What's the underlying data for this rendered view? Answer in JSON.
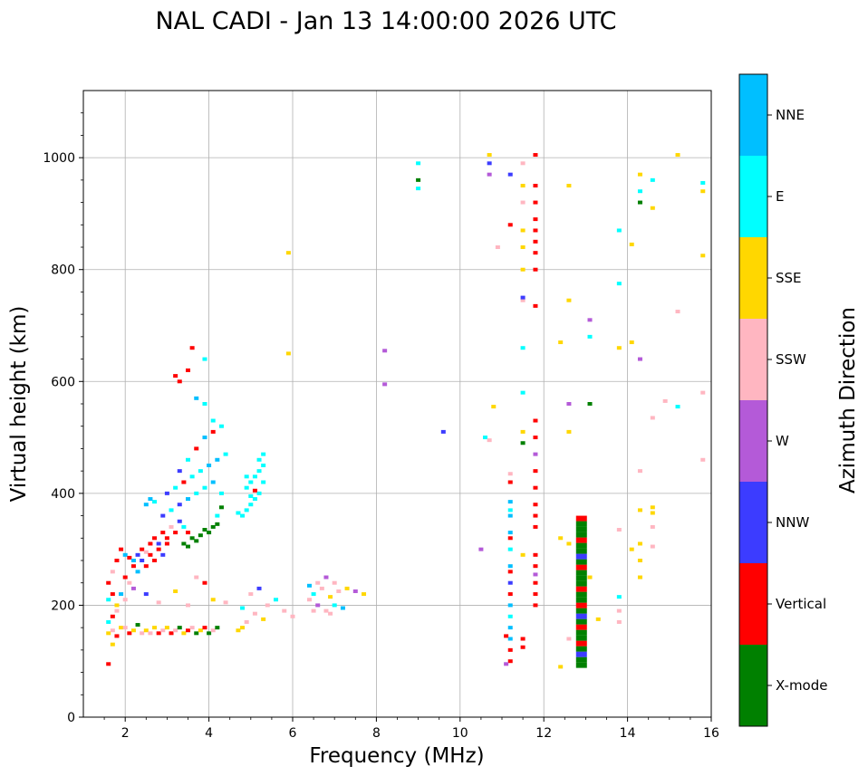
{
  "chart_data": {
    "type": "scatter",
    "title": "NAL CADI - Jan 13 14:00:00 2026 UTC",
    "xlabel": "Frequency (MHz)",
    "ylabel": "Virtual height (km)",
    "xlim": [
      1,
      16
    ],
    "ylim": [
      0,
      1120
    ],
    "xticks": [
      2,
      4,
      6,
      8,
      10,
      12,
      14,
      16
    ],
    "yticks": [
      0,
      200,
      400,
      600,
      800,
      1000
    ],
    "grid": true,
    "colorbar": {
      "label": "Azimuth Direction",
      "categories": [
        {
          "name": "X-mode",
          "color": "#008000"
        },
        {
          "name": "Vertical",
          "color": "#ff0000"
        },
        {
          "name": "NNW",
          "color": "#3c3cff"
        },
        {
          "name": "W",
          "color": "#b45ad8"
        },
        {
          "name": "SSW",
          "color": "#ffb6c1"
        },
        {
          "name": "SSE",
          "color": "#ffd700"
        },
        {
          "name": "E",
          "color": "#00ffff"
        },
        {
          "name": "NNE",
          "color": "#00bfff"
        }
      ]
    },
    "points": [
      [
        1.6,
        150,
        "SSE"
      ],
      [
        1.7,
        155,
        "SSW"
      ],
      [
        1.8,
        145,
        "Vertical"
      ],
      [
        1.9,
        160,
        "SSE"
      ],
      [
        1.6,
        170,
        "E"
      ],
      [
        1.7,
        180,
        "Vertical"
      ],
      [
        1.8,
        200,
        "SSE"
      ],
      [
        1.6,
        210,
        "E"
      ],
      [
        1.9,
        220,
        "NNE"
      ],
      [
        2.0,
        160,
        "SSW"
      ],
      [
        2.1,
        150,
        "Vertical"
      ],
      [
        2.2,
        155,
        "SSE"
      ],
      [
        2.3,
        165,
        "X-mode"
      ],
      [
        2.4,
        150,
        "SSW"
      ],
      [
        2.5,
        155,
        "SSE"
      ],
      [
        2.6,
        150,
        "SSW"
      ],
      [
        2.7,
        160,
        "SSE"
      ],
      [
        2.8,
        150,
        "Vertical"
      ],
      [
        2.9,
        155,
        "SSW"
      ],
      [
        3.0,
        160,
        "SSE"
      ],
      [
        3.1,
        150,
        "Vertical"
      ],
      [
        3.2,
        155,
        "SSW"
      ],
      [
        3.3,
        160,
        "X-mode"
      ],
      [
        3.4,
        150,
        "SSE"
      ],
      [
        3.5,
        155,
        "Vertical"
      ],
      [
        3.6,
        160,
        "SSW"
      ],
      [
        3.7,
        150,
        "X-mode"
      ],
      [
        3.8,
        155,
        "SSE"
      ],
      [
        3.9,
        160,
        "Vertical"
      ],
      [
        4.0,
        150,
        "X-mode"
      ],
      [
        4.1,
        155,
        "SSW"
      ],
      [
        4.2,
        160,
        "X-mode"
      ],
      [
        4.7,
        155,
        "SSE"
      ],
      [
        4.8,
        160,
        "SSE"
      ],
      [
        1.6,
        95,
        "Vertical"
      ],
      [
        1.7,
        130,
        "SSE"
      ],
      [
        1.8,
        190,
        "SSW"
      ],
      [
        2.0,
        210,
        "SSW"
      ],
      [
        2.2,
        230,
        "W"
      ],
      [
        2.5,
        220,
        "NNW"
      ],
      [
        2.8,
        205,
        "SSW"
      ],
      [
        3.2,
        225,
        "SSE"
      ],
      [
        3.5,
        200,
        "SSW"
      ],
      [
        3.7,
        250,
        "SSW"
      ],
      [
        3.9,
        240,
        "Vertical"
      ],
      [
        4.1,
        210,
        "SSE"
      ],
      [
        4.4,
        205,
        "SSW"
      ],
      [
        4.8,
        195,
        "E"
      ],
      [
        5.0,
        220,
        "SSW"
      ],
      [
        5.2,
        230,
        "NNW"
      ],
      [
        5.4,
        200,
        "SSW"
      ],
      [
        5.6,
        210,
        "E"
      ],
      [
        5.8,
        190,
        "SSW"
      ],
      [
        6.0,
        180,
        "SSW"
      ],
      [
        4.9,
        170,
        "SSW"
      ],
      [
        5.1,
        185,
        "SSW"
      ],
      [
        5.3,
        175,
        "SSE"
      ],
      [
        6.4,
        210,
        "SSW"
      ],
      [
        6.5,
        220,
        "E"
      ],
      [
        6.6,
        200,
        "W"
      ],
      [
        6.7,
        230,
        "SSW"
      ],
      [
        6.8,
        190,
        "SSW"
      ],
      [
        6.9,
        215,
        "SSE"
      ],
      [
        7.0,
        200,
        "E"
      ],
      [
        7.1,
        225,
        "SSW"
      ],
      [
        7.2,
        195,
        "NNE"
      ],
      [
        6.6,
        240,
        "SSW"
      ],
      [
        6.8,
        250,
        "W"
      ],
      [
        7.0,
        240,
        "SSW"
      ],
      [
        6.5,
        190,
        "SSW"
      ],
      [
        7.3,
        230,
        "SSE"
      ],
      [
        7.5,
        225,
        "W"
      ],
      [
        7.7,
        220,
        "SSE"
      ],
      [
        6.4,
        235,
        "NNE"
      ],
      [
        6.9,
        185,
        "SSW"
      ],
      [
        1.7,
        260,
        "SSW"
      ],
      [
        1.8,
        280,
        "Vertical"
      ],
      [
        1.9,
        300,
        "Vertical"
      ],
      [
        2.0,
        290,
        "NNE"
      ],
      [
        2.1,
        285,
        "Vertical"
      ],
      [
        2.2,
        280,
        "NNE"
      ],
      [
        2.3,
        290,
        "NNW"
      ],
      [
        2.4,
        300,
        "Vertical"
      ],
      [
        2.5,
        295,
        "SSW"
      ],
      [
        2.6,
        310,
        "Vertical"
      ],
      [
        2.7,
        320,
        "Vertical"
      ],
      [
        2.8,
        310,
        "NNW"
      ],
      [
        2.9,
        330,
        "Vertical"
      ],
      [
        3.0,
        320,
        "Vertical"
      ],
      [
        3.1,
        340,
        "SSW"
      ],
      [
        3.2,
        330,
        "Vertical"
      ],
      [
        3.3,
        350,
        "NNW"
      ],
      [
        3.4,
        340,
        "E"
      ],
      [
        3.5,
        330,
        "Vertical"
      ],
      [
        2.0,
        250,
        "Vertical"
      ],
      [
        2.2,
        270,
        "Vertical"
      ],
      [
        2.4,
        280,
        "NNW"
      ],
      [
        2.6,
        290,
        "Vertical"
      ],
      [
        2.8,
        300,
        "Vertical"
      ],
      [
        3.0,
        310,
        "Vertical"
      ],
      [
        1.6,
        240,
        "Vertical"
      ],
      [
        1.7,
        220,
        "Vertical"
      ],
      [
        2.1,
        240,
        "SSW"
      ],
      [
        2.3,
        260,
        "NNE"
      ],
      [
        2.5,
        270,
        "Vertical"
      ],
      [
        2.7,
        280,
        "Vertical"
      ],
      [
        2.9,
        290,
        "NNW"
      ],
      [
        3.4,
        310,
        "X-mode"
      ],
      [
        3.6,
        320,
        "X-mode"
      ],
      [
        3.8,
        325,
        "X-mode"
      ],
      [
        4.0,
        330,
        "X-mode"
      ],
      [
        4.1,
        340,
        "X-mode"
      ],
      [
        4.2,
        345,
        "X-mode"
      ],
      [
        3.5,
        305,
        "X-mode"
      ],
      [
        3.7,
        315,
        "X-mode"
      ],
      [
        3.9,
        335,
        "X-mode"
      ],
      [
        4.2,
        360,
        "E"
      ],
      [
        4.3,
        375,
        "X-mode"
      ],
      [
        2.5,
        380,
        "NNE"
      ],
      [
        2.7,
        385,
        "E"
      ],
      [
        2.9,
        360,
        "NNW"
      ],
      [
        3.1,
        370,
        "E"
      ],
      [
        3.3,
        380,
        "NNW"
      ],
      [
        3.5,
        390,
        "NNE"
      ],
      [
        3.7,
        400,
        "E"
      ],
      [
        3.9,
        410,
        "E"
      ],
      [
        4.1,
        420,
        "NNE"
      ],
      [
        4.3,
        400,
        "E"
      ],
      [
        2.6,
        390,
        "NNE"
      ],
      [
        3.0,
        400,
        "NNW"
      ],
      [
        3.2,
        410,
        "E"
      ],
      [
        3.4,
        420,
        "Vertical"
      ],
      [
        3.6,
        430,
        "E"
      ],
      [
        3.8,
        440,
        "E"
      ],
      [
        4.0,
        450,
        "NNE"
      ],
      [
        4.2,
        460,
        "NNE"
      ],
      [
        4.4,
        470,
        "E"
      ],
      [
        3.3,
        440,
        "NNW"
      ],
      [
        3.5,
        460,
        "E"
      ],
      [
        3.7,
        480,
        "Vertical"
      ],
      [
        3.9,
        500,
        "NNE"
      ],
      [
        4.1,
        510,
        "Vertical"
      ],
      [
        4.8,
        360,
        "E"
      ],
      [
        4.9,
        370,
        "E"
      ],
      [
        5.0,
        380,
        "E"
      ],
      [
        5.1,
        390,
        "E"
      ],
      [
        5.2,
        400,
        "E"
      ],
      [
        4.9,
        410,
        "E"
      ],
      [
        5.0,
        420,
        "E"
      ],
      [
        5.1,
        430,
        "E"
      ],
      [
        5.2,
        440,
        "E"
      ],
      [
        5.3,
        450,
        "E"
      ],
      [
        5.2,
        460,
        "E"
      ],
      [
        5.3,
        470,
        "E"
      ],
      [
        4.7,
        365,
        "E"
      ],
      [
        5.0,
        395,
        "E"
      ],
      [
        5.3,
        420,
        "E"
      ],
      [
        4.9,
        430,
        "E"
      ],
      [
        5.1,
        405,
        "Vertical"
      ],
      [
        3.3,
        600,
        "Vertical"
      ],
      [
        3.5,
        620,
        "Vertical"
      ],
      [
        3.6,
        660,
        "Vertical"
      ],
      [
        3.9,
        640,
        "E"
      ],
      [
        3.7,
        570,
        "NNE"
      ],
      [
        3.9,
        560,
        "E"
      ],
      [
        4.1,
        530,
        "E"
      ],
      [
        4.3,
        520,
        "E"
      ],
      [
        3.2,
        610,
        "Vertical"
      ],
      [
        5.9,
        830,
        "SSE"
      ],
      [
        5.9,
        650,
        "SSE"
      ],
      [
        8.2,
        655,
        "W"
      ],
      [
        8.2,
        595,
        "W"
      ],
      [
        9.0,
        990,
        "E"
      ],
      [
        9.0,
        960,
        "X-mode"
      ],
      [
        9.0,
        945,
        "E"
      ],
      [
        9.6,
        510,
        "NNW"
      ],
      [
        10.5,
        300,
        "W"
      ],
      [
        10.6,
        500,
        "E"
      ],
      [
        10.7,
        1005,
        "SSE"
      ],
      [
        10.7,
        990,
        "NNW"
      ],
      [
        10.7,
        970,
        "W"
      ],
      [
        10.8,
        555,
        "SSE"
      ],
      [
        10.9,
        840,
        "SSW"
      ],
      [
        10.7,
        495,
        "SSW"
      ],
      [
        11.2,
        100,
        "Vertical"
      ],
      [
        11.2,
        120,
        "Vertical"
      ],
      [
        11.2,
        140,
        "NNE"
      ],
      [
        11.2,
        160,
        "NNE"
      ],
      [
        11.2,
        180,
        "E"
      ],
      [
        11.2,
        200,
        "NNE"
      ],
      [
        11.2,
        220,
        "Vertical"
      ],
      [
        11.2,
        240,
        "NNW"
      ],
      [
        11.2,
        260,
        "Vertical"
      ],
      [
        11.2,
        270,
        "NNE"
      ],
      [
        11.2,
        300,
        "E"
      ],
      [
        11.2,
        320,
        "Vertical"
      ],
      [
        11.2,
        330,
        "NNE"
      ],
      [
        11.2,
        360,
        "NNE"
      ],
      [
        11.2,
        370,
        "E"
      ],
      [
        11.2,
        385,
        "NNE"
      ],
      [
        11.2,
        420,
        "Vertical"
      ],
      [
        11.2,
        435,
        "SSW"
      ],
      [
        11.2,
        880,
        "Vertical"
      ],
      [
        11.2,
        970,
        "NNW"
      ],
      [
        11.1,
        145,
        "Vertical"
      ],
      [
        11.1,
        95,
        "W"
      ],
      [
        11.5,
        140,
        "Vertical"
      ],
      [
        11.5,
        290,
        "SSE"
      ],
      [
        11.5,
        490,
        "X-mode"
      ],
      [
        11.5,
        510,
        "SSE"
      ],
      [
        11.5,
        580,
        "E"
      ],
      [
        11.5,
        660,
        "E"
      ],
      [
        11.5,
        745,
        "SSW"
      ],
      [
        11.5,
        750,
        "NNW"
      ],
      [
        11.5,
        800,
        "SSE"
      ],
      [
        11.5,
        840,
        "SSE"
      ],
      [
        11.5,
        870,
        "SSE"
      ],
      [
        11.5,
        920,
        "SSW"
      ],
      [
        11.5,
        950,
        "SSE"
      ],
      [
        11.5,
        990,
        "SSW"
      ],
      [
        11.5,
        125,
        "Vertical"
      ],
      [
        11.8,
        200,
        "Vertical"
      ],
      [
        11.8,
        220,
        "Vertical"
      ],
      [
        11.8,
        240,
        "Vertical"
      ],
      [
        11.8,
        270,
        "Vertical"
      ],
      [
        11.8,
        290,
        "Vertical"
      ],
      [
        11.8,
        340,
        "Vertical"
      ],
      [
        11.8,
        360,
        "Vertical"
      ],
      [
        11.8,
        380,
        "Vertical"
      ],
      [
        11.8,
        410,
        "Vertical"
      ],
      [
        11.8,
        440,
        "Vertical"
      ],
      [
        11.8,
        470,
        "W"
      ],
      [
        11.8,
        500,
        "Vertical"
      ],
      [
        11.8,
        530,
        "Vertical"
      ],
      [
        11.8,
        735,
        "Vertical"
      ],
      [
        11.8,
        800,
        "Vertical"
      ],
      [
        11.8,
        830,
        "Vertical"
      ],
      [
        11.8,
        850,
        "Vertical"
      ],
      [
        11.8,
        870,
        "Vertical"
      ],
      [
        11.8,
        890,
        "Vertical"
      ],
      [
        11.8,
        920,
        "Vertical"
      ],
      [
        11.8,
        950,
        "Vertical"
      ],
      [
        11.8,
        1005,
        "Vertical"
      ],
      [
        11.8,
        255,
        "W"
      ],
      [
        12.4,
        90,
        "SSE"
      ],
      [
        12.4,
        320,
        "SSE"
      ],
      [
        12.4,
        670,
        "SSE"
      ],
      [
        12.6,
        140,
        "SSW"
      ],
      [
        12.6,
        310,
        "SSE"
      ],
      [
        12.6,
        510,
        "SSE"
      ],
      [
        12.6,
        560,
        "W"
      ],
      [
        12.6,
        745,
        "SSE"
      ],
      [
        12.6,
        950,
        "SSE"
      ],
      [
        13.1,
        250,
        "SSE"
      ],
      [
        13.1,
        560,
        "X-mode"
      ],
      [
        13.1,
        680,
        "E"
      ],
      [
        13.1,
        710,
        "W"
      ],
      [
        13.3,
        175,
        "SSE"
      ],
      [
        13.8,
        215,
        "E"
      ],
      [
        13.8,
        190,
        "SSW"
      ],
      [
        13.8,
        170,
        "SSW"
      ],
      [
        13.8,
        335,
        "SSW"
      ],
      [
        13.8,
        660,
        "SSE"
      ],
      [
        13.8,
        775,
        "E"
      ],
      [
        13.8,
        870,
        "E"
      ],
      [
        14.1,
        300,
        "SSE"
      ],
      [
        14.1,
        670,
        "SSE"
      ],
      [
        14.1,
        845,
        "SSE"
      ],
      [
        14.3,
        250,
        "SSE"
      ],
      [
        14.3,
        280,
        "SSE"
      ],
      [
        14.3,
        310,
        "SSE"
      ],
      [
        14.3,
        370,
        "SSE"
      ],
      [
        14.3,
        440,
        "SSW"
      ],
      [
        14.3,
        640,
        "W"
      ],
      [
        14.3,
        920,
        "X-mode"
      ],
      [
        14.3,
        940,
        "E"
      ],
      [
        14.3,
        970,
        "SSE"
      ],
      [
        14.6,
        305,
        "SSW"
      ],
      [
        14.6,
        340,
        "SSW"
      ],
      [
        14.6,
        365,
        "SSE"
      ],
      [
        14.6,
        375,
        "SSE"
      ],
      [
        14.6,
        535,
        "SSW"
      ],
      [
        14.6,
        910,
        "SSE"
      ],
      [
        14.6,
        960,
        "E"
      ],
      [
        14.9,
        565,
        "SSW"
      ],
      [
        15.2,
        555,
        "E"
      ],
      [
        15.2,
        725,
        "SSW"
      ],
      [
        15.2,
        1005,
        "SSE"
      ],
      [
        15.8,
        460,
        "SSW"
      ],
      [
        15.8,
        580,
        "SSW"
      ],
      [
        15.8,
        825,
        "SSE"
      ],
      [
        15.8,
        940,
        "SSE"
      ],
      [
        15.8,
        955,
        "E"
      ]
    ],
    "column": {
      "x": 12.9,
      "ymin": 88,
      "ymax": 360,
      "colors": [
        "X-mode",
        "X-mode",
        "NNW",
        "X-mode",
        "Vertical",
        "X-mode",
        "X-mode",
        "Vertical",
        "X-mode",
        "NNW",
        "X-mode",
        "Vertical",
        "X-mode",
        "X-mode",
        "Vertical",
        "X-mode",
        "X-mode",
        "X-mode",
        "Vertical",
        "X-mode",
        "NNW",
        "X-mode",
        "X-mode",
        "Vertical",
        "X-mode",
        "X-mode",
        "X-mode",
        "Vertical"
      ]
    }
  }
}
